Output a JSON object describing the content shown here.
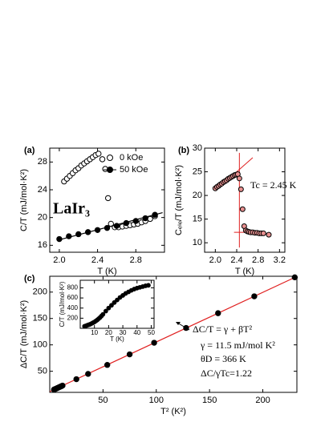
{
  "chart_data": [
    {
      "type": "scatter",
      "panel_label": "(a)",
      "xlabel": "T (K)",
      "ylabel": "C/T (mJ/mol·K²)",
      "xlim": [
        1.9,
        3.1
      ],
      "xticks": [
        {
          "value": 2.0,
          "label": "2.0"
        },
        2.4,
        2.8
      ],
      "ylim": [
        15,
        30
      ],
      "yticks": [
        16,
        20,
        24,
        28
      ],
      "legend": "upper right",
      "annotations": [
        "LaIr₃"
      ],
      "series": [
        {
          "name": "0 kOe",
          "color": "#000000",
          "marker": "open",
          "x": [
            2.05,
            2.08,
            2.11,
            2.14,
            2.17,
            2.2,
            2.23,
            2.26,
            2.29,
            2.32,
            2.35,
            2.38,
            2.41,
            2.45,
            2.48,
            2.51,
            2.54,
            2.58,
            2.62,
            2.66,
            2.7,
            2.74,
            2.78,
            2.82,
            2.86,
            2.9,
            2.95,
            3.0
          ],
          "values": [
            25.2,
            25.6,
            26.0,
            26.4,
            26.8,
            27.1,
            27.5,
            27.8,
            28.1,
            28.4,
            28.7,
            29.0,
            29.2,
            28.4,
            27.0,
            22.8,
            19.1,
            18.6,
            18.6,
            18.7,
            18.8,
            18.9,
            19.0,
            19.1,
            19.3,
            19.5,
            19.8,
            20.2
          ]
        },
        {
          "name": "50 kOe",
          "color": "#000000",
          "marker": "filled",
          "x": [
            2.0,
            2.1,
            2.2,
            2.3,
            2.4,
            2.5,
            2.6,
            2.7,
            2.8,
            2.9,
            3.0
          ],
          "values": [
            16.9,
            17.3,
            17.6,
            17.9,
            18.2,
            18.5,
            18.8,
            19.2,
            19.5,
            19.9,
            20.4
          ],
          "fit": {
            "x": [
              2.0,
              3.08
            ],
            "y": [
              16.8,
              20.7
            ]
          }
        }
      ]
    },
    {
      "type": "scatter",
      "panel_label": "(b)",
      "xlabel": "T (K)",
      "ylabel": "Cₑₗₑ/T (mJ/mol·K²)",
      "xlim": [
        1.8,
        3.3
      ],
      "xticks": [
        {
          "value": 2.0,
          "label": "2.0"
        },
        2.4,
        2.8,
        3.2
      ],
      "ylim": [
        8,
        30
      ],
      "yticks": [
        10,
        15,
        20,
        25,
        30
      ],
      "annotations": [
        "Tc = 2.45 K"
      ],
      "guides": [
        {
          "x": [
            2.45,
            2.45
          ],
          "y": [
            9,
            29
          ]
        },
        {
          "x": [
            2.35,
            2.9
          ],
          "y": [
            12.2,
            12.2
          ]
        },
        {
          "x": [
            2.0,
            2.7
          ],
          "y": [
            21.0,
            28.0
          ]
        }
      ],
      "guide_color": "#e02020",
      "series": [
        {
          "name": "Cele",
          "color": "#000000",
          "fill": "#e89090",
          "marker": "open",
          "x": [
            2.0,
            2.03,
            2.06,
            2.09,
            2.12,
            2.15,
            2.18,
            2.21,
            2.24,
            2.27,
            2.3,
            2.33,
            2.36,
            2.39,
            2.42,
            2.45,
            2.48,
            2.51,
            2.54,
            2.57,
            2.6,
            2.63,
            2.66,
            2.7,
            2.74,
            2.78,
            2.82,
            2.86,
            2.9,
            3.0
          ],
          "values": [
            21.5,
            21.8,
            22.0,
            22.3,
            22.5,
            22.8,
            23.0,
            23.2,
            23.5,
            23.7,
            23.9,
            24.1,
            24.3,
            24.4,
            24.5,
            23.6,
            21.3,
            17.1,
            13.5,
            12.6,
            12.4,
            12.3,
            12.2,
            12.2,
            12.1,
            12.1,
            12.0,
            12.0,
            12.0,
            11.7
          ]
        }
      ]
    },
    {
      "type": "scatter",
      "panel_label": "(c)",
      "xlabel": "T² (K²)",
      "ylabel": "ΔC/T (mJ/mol·K²)",
      "xlim": [
        0,
        232
      ],
      "xticks": [
        50,
        100,
        150,
        200
      ],
      "ylim": [
        10,
        230
      ],
      "yticks": [
        50,
        100,
        150,
        200
      ],
      "annotations": [
        "ΔC/T = γ + βT²",
        "γ = 11.5 mJ/mol K²",
        "θD = 366 K",
        "ΔC/γTc=1.22"
      ],
      "series": [
        {
          "name": "ΔC/T",
          "color": "#000000",
          "marker": "filled",
          "x": [
            4,
            4.8,
            5.6,
            6.4,
            7.2,
            8,
            9,
            10,
            11,
            12,
            25,
            36,
            54,
            75,
            98,
            128,
            158,
            192,
            230
          ],
          "values": [
            15.3,
            16.0,
            16.8,
            17.5,
            18.3,
            19.0,
            20.0,
            20.9,
            21.8,
            22.8,
            35,
            45,
            62,
            82,
            104,
            132,
            160,
            192,
            228
          ],
          "fit": {
            "x": [
              0,
              232
            ],
            "y": [
              11.5,
              229.6
            ]
          },
          "fit_color": "#e02020"
        }
      ]
    },
    {
      "type": "scatter",
      "xlabel": "T (K)",
      "ylabel": "C/T (mJ/mol·K²)",
      "xlim": [
        0,
        52
      ],
      "xticks": [
        10,
        20,
        30,
        40,
        50
      ],
      "ylim": [
        0,
        950
      ],
      "yticks": [
        200,
        400,
        600,
        800
      ],
      "series": [
        {
          "name": "C/T",
          "color": "#000000",
          "marker": "filled",
          "x": [
            3,
            4,
            5,
            6,
            7,
            8,
            9,
            10,
            11,
            12,
            13,
            14,
            15,
            16,
            18,
            20,
            22,
            24,
            26,
            28,
            30,
            32,
            34,
            36,
            38,
            40,
            42,
            44,
            46,
            48
          ],
          "values": [
            40,
            50,
            60,
            70,
            80,
            95,
            110,
            125,
            145,
            165,
            190,
            215,
            245,
            275,
            340,
            400,
            455,
            510,
            560,
            610,
            650,
            690,
            720,
            750,
            775,
            795,
            810,
            825,
            840,
            850
          ]
        }
      ]
    }
  ]
}
